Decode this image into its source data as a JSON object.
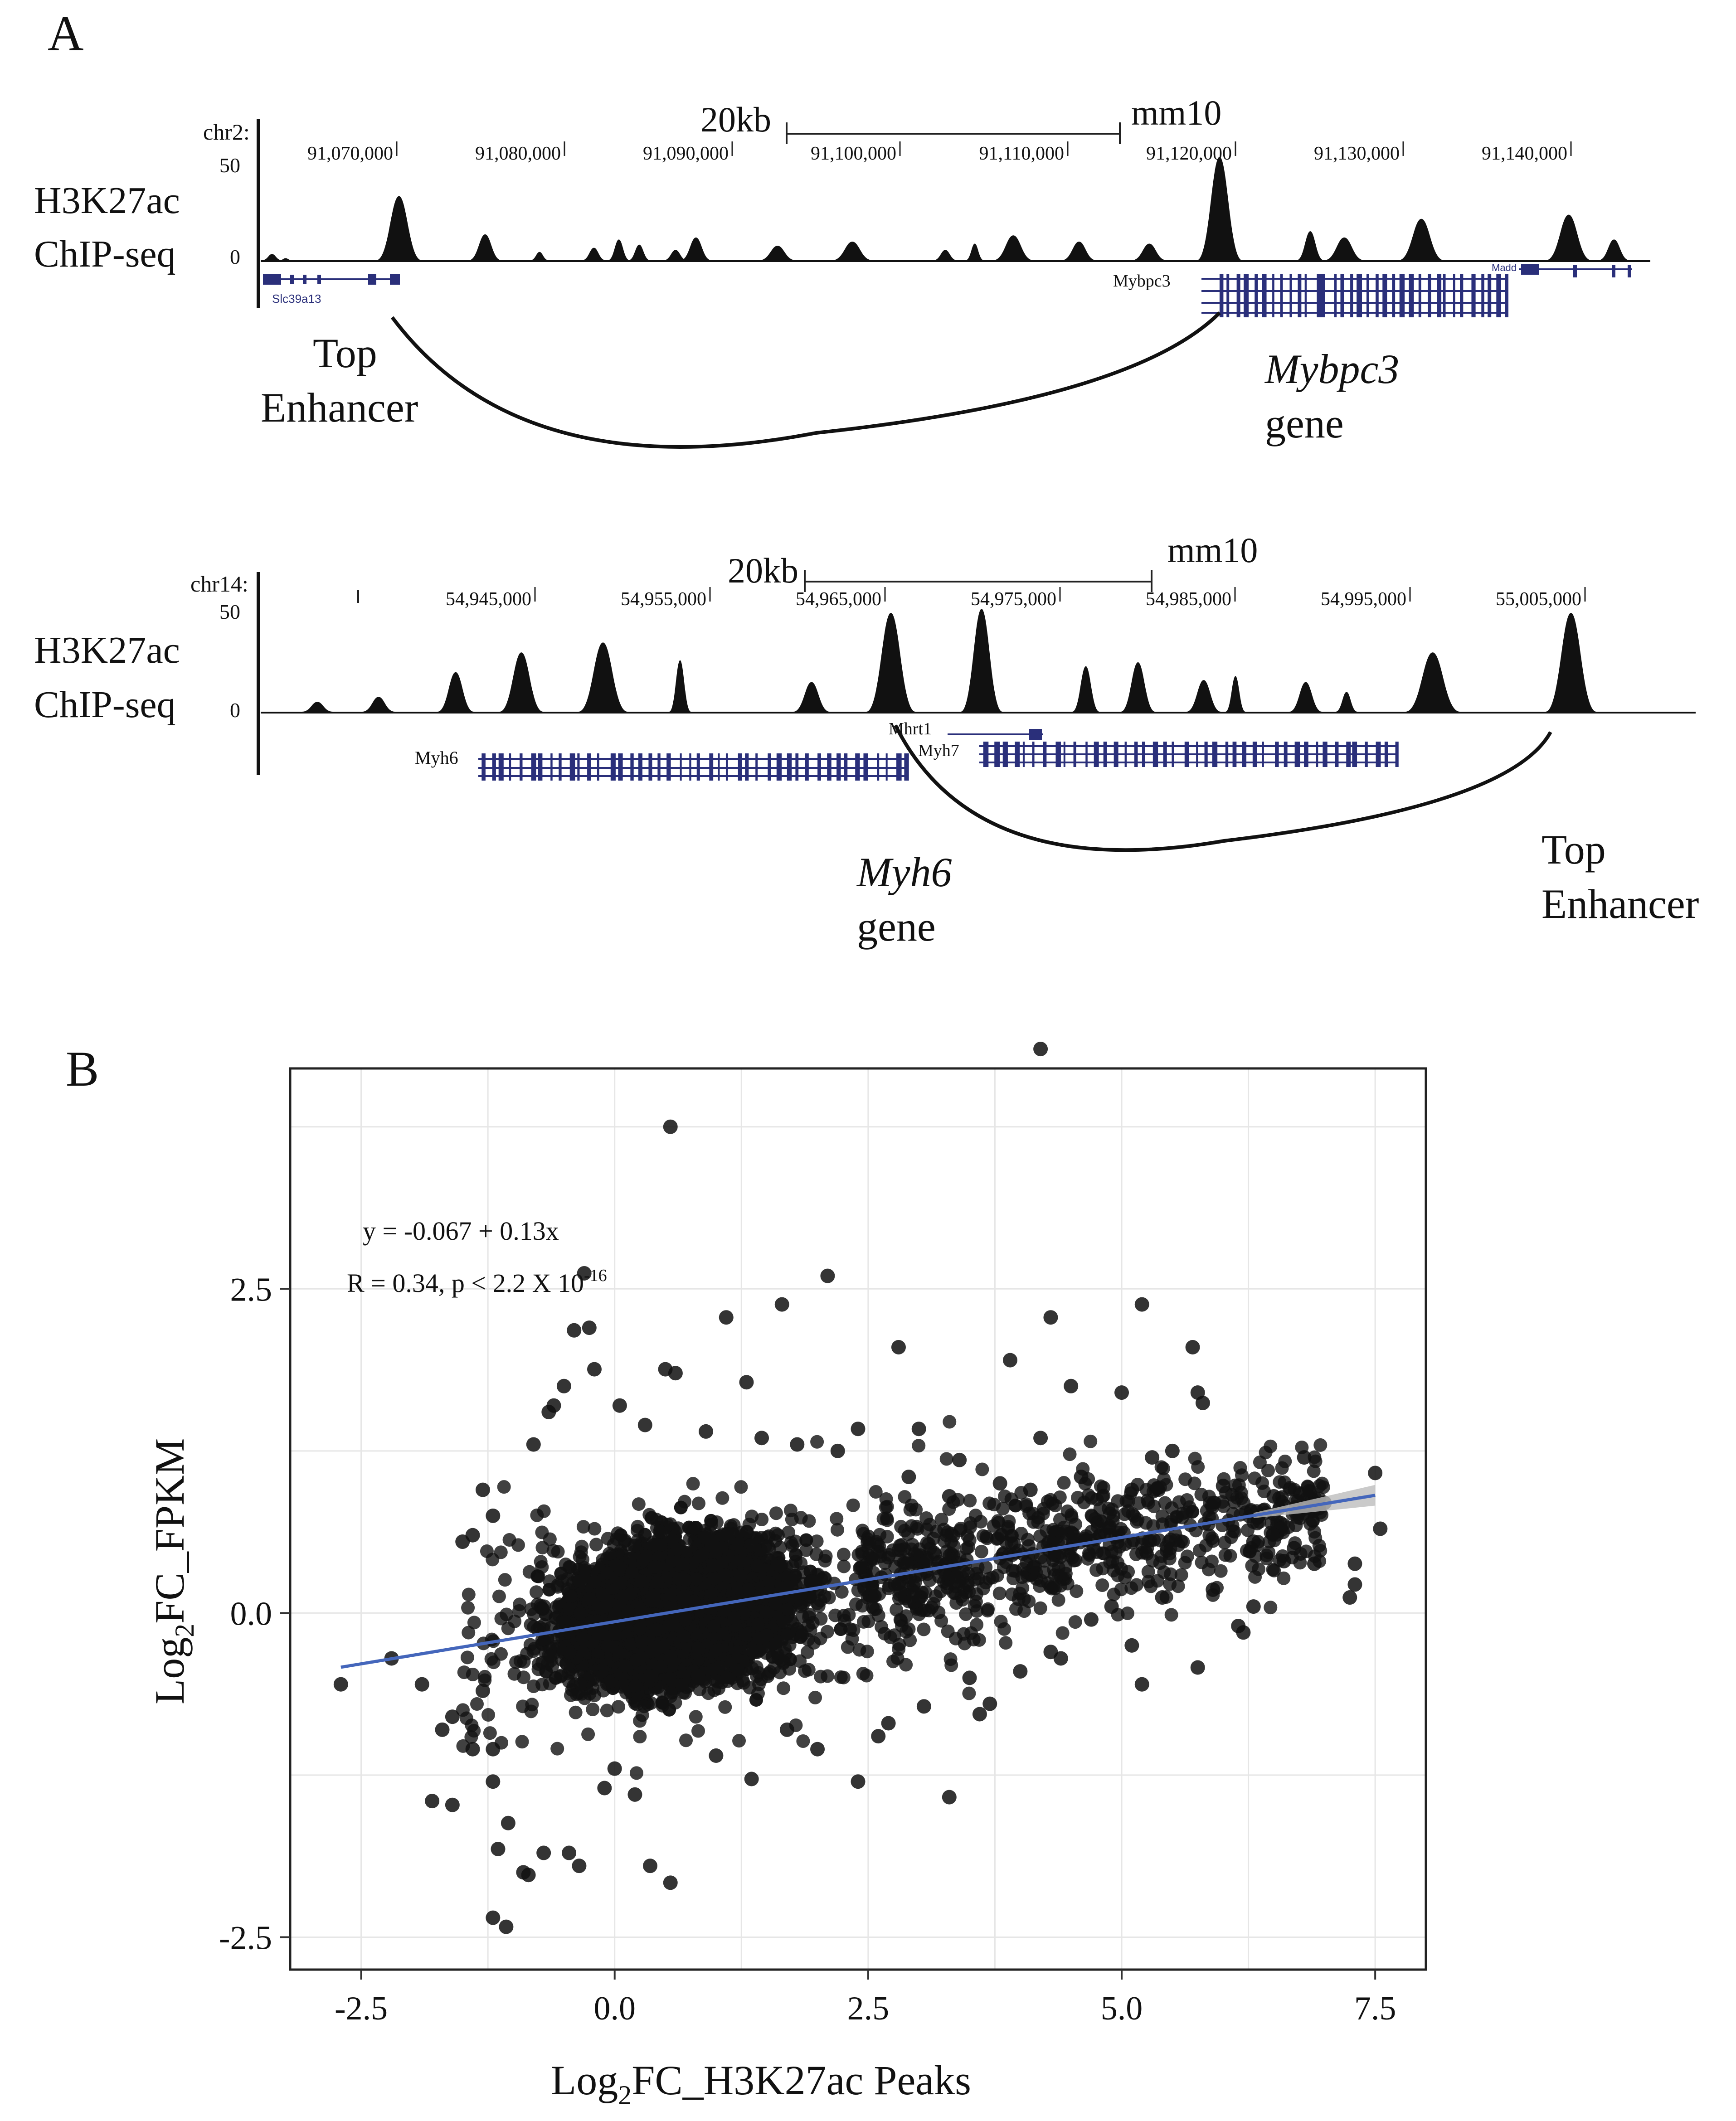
{
  "panel_a": {
    "label": "A",
    "top_track": {
      "chrom": "chr2:",
      "scale_text": "20kb",
      "assembly": "mm10",
      "ymax": "50",
      "ymin": "0",
      "track_label_1": "H3K27ac",
      "track_label_2": "ChIP-seq",
      "positions": [
        "91,070,000",
        "91,080,000",
        "91,090,000",
        "91,100,000",
        "91,110,000",
        "91,120,000",
        "91,130,000",
        "91,140,000"
      ],
      "genes": [
        "Slc39a13",
        "Mybpc3",
        "Madd"
      ],
      "enhancer_label_1": "Top",
      "enhancer_label_2": "Enhancer",
      "gene_label_1": "Mybpc3",
      "gene_label_2": "gene",
      "peak_heights": [
        0.06,
        0.02,
        0.62,
        0.25,
        0.08,
        0.12,
        0.2,
        0.15,
        0.1,
        0.22,
        0.14,
        0.18,
        0.1,
        0.16,
        0.24,
        0.18,
        0.16,
        1.0,
        0.28,
        0.22,
        0.4,
        0.44,
        0.2
      ]
    },
    "bottom_track": {
      "chrom": "chr14:",
      "scale_text": "20kb",
      "assembly": "mm10",
      "ymax": "50",
      "ymin": "0",
      "track_label_1": "H3K27ac",
      "track_label_2": "ChIP-seq",
      "positions": [
        "54,945,000",
        "54,955,000",
        "54,965,000",
        "54,975,000",
        "54,985,000",
        "54,995,000",
        "55,005,000"
      ],
      "genes": [
        "Myh6",
        "Mhrt1",
        "Myh7"
      ],
      "gene_label_1": "Myh6",
      "gene_label_2": "gene",
      "enhancer_label_1": "Top",
      "enhancer_label_2": "Enhancer",
      "peak_heights": [
        0.1,
        0.15,
        0.4,
        0.6,
        0.7,
        0.52,
        1.0,
        1.04,
        0.3,
        0.5,
        0.46,
        0.32,
        0.36,
        0.3,
        0.2,
        0.6,
        1.0
      ]
    }
  },
  "panel_b": {
    "label": "B",
    "equation": "y = -0.067 + 0.13x",
    "stats_prefix": "R = 0.34, p < 2.2 X 10",
    "stats_exp": "-16",
    "xlabel_pre": "Log",
    "xlabel_sub": "2",
    "xlabel_post": "FC_H3K27ac Peaks",
    "ylabel_pre": "Log",
    "ylabel_sub": "2",
    "ylabel_post": "FC_FPKM",
    "colors": {
      "points": "#111111",
      "fit": "#4466bb",
      "grid": "#e6e6e6"
    }
  },
  "chart_data": {
    "type": "scatter",
    "xlim": [
      -3.2,
      8.0
    ],
    "ylim": [
      -2.75,
      4.2
    ],
    "x_ticks": [
      -2.5,
      0.0,
      2.5,
      5.0,
      7.5
    ],
    "x_tick_labels": [
      "-2.5",
      "0.0",
      "2.5",
      "5.0",
      "7.5"
    ],
    "y_ticks": [
      -2.5,
      0.0,
      2.5
    ],
    "y_tick_labels": [
      "-2.5",
      "0.0",
      "2.5"
    ],
    "grid": true,
    "fit": {
      "intercept": -0.067,
      "slope": 0.13,
      "x_range": [
        -2.7,
        7.5
      ]
    },
    "points": [
      [
        4.2,
        4.35
      ],
      [
        0.55,
        3.75
      ],
      [
        -0.3,
        2.62
      ],
      [
        2.1,
        2.6
      ],
      [
        1.65,
        2.38
      ],
      [
        5.2,
        2.38
      ],
      [
        4.3,
        2.28
      ],
      [
        1.1,
        2.28
      ],
      [
        -0.4,
        2.18
      ],
      [
        -0.25,
        2.2
      ],
      [
        2.8,
        2.05
      ],
      [
        5.7,
        2.05
      ],
      [
        3.9,
        1.95
      ],
      [
        -0.2,
        1.88
      ],
      [
        0.5,
        1.88
      ],
      [
        0.6,
        1.85
      ],
      [
        1.3,
        1.78
      ],
      [
        -0.5,
        1.75
      ],
      [
        4.5,
        1.75
      ],
      [
        5.0,
        1.7
      ],
      [
        5.75,
        1.7
      ],
      [
        5.8,
        1.62
      ],
      [
        -0.6,
        1.6
      ],
      [
        0.05,
        1.6
      ],
      [
        -0.65,
        1.55
      ],
      [
        -0.8,
        1.3
      ],
      [
        2.4,
        1.42
      ],
      [
        3.0,
        1.42
      ],
      [
        4.2,
        1.35
      ],
      [
        5.5,
        1.25
      ],
      [
        5.3,
        1.2
      ],
      [
        6.8,
        1.2
      ],
      [
        7.5,
        1.08
      ],
      [
        6.0,
        0.98
      ],
      [
        6.5,
        0.9
      ],
      [
        7.0,
        0.85
      ],
      [
        -1.3,
        0.95
      ],
      [
        -1.2,
        0.75
      ],
      [
        -1.4,
        0.6
      ],
      [
        -1.5,
        0.55
      ],
      [
        7.55,
        0.65
      ],
      [
        6.3,
        0.55
      ],
      [
        6.7,
        0.5
      ],
      [
        6.6,
        0.4
      ],
      [
        7.3,
        0.38
      ],
      [
        6.9,
        0.38
      ],
      [
        7.3,
        0.22
      ],
      [
        7.25,
        0.12
      ],
      [
        6.3,
        0.05
      ],
      [
        6.15,
        -0.1
      ],
      [
        6.2,
        -0.15
      ],
      [
        5.1,
        -0.25
      ],
      [
        4.3,
        -0.3
      ],
      [
        4.4,
        -0.35
      ],
      [
        5.2,
        -0.55
      ],
      [
        5.75,
        -0.42
      ],
      [
        4.0,
        -0.45
      ],
      [
        3.5,
        -0.5
      ],
      [
        3.7,
        -0.7
      ],
      [
        3.6,
        -0.78
      ],
      [
        -2.7,
        -0.55
      ],
      [
        -2.2,
        -0.35
      ],
      [
        -1.9,
        -0.55
      ],
      [
        -1.6,
        -0.8
      ],
      [
        -1.7,
        -0.9
      ],
      [
        -1.3,
        -0.6
      ],
      [
        -1.2,
        -1.05
      ],
      [
        -1.2,
        -1.3
      ],
      [
        -1.4,
        -1.05
      ],
      [
        -1.8,
        -1.45
      ],
      [
        -1.6,
        -1.48
      ],
      [
        -1.05,
        -1.62
      ],
      [
        -1.15,
        -1.82
      ],
      [
        -0.7,
        -1.85
      ],
      [
        -0.9,
        -2.0
      ],
      [
        -0.85,
        -2.02
      ],
      [
        -0.35,
        -1.95
      ],
      [
        -0.45,
        -1.85
      ],
      [
        -1.2,
        -2.35
      ],
      [
        -1.07,
        -2.42
      ],
      [
        0.35,
        -1.95
      ],
      [
        0.55,
        -2.08
      ],
      [
        3.3,
        -1.42
      ],
      [
        2.4,
        -1.3
      ],
      [
        1.35,
        -1.28
      ],
      [
        2.0,
        -1.05
      ],
      [
        2.6,
        -0.95
      ],
      [
        1.0,
        -1.1
      ],
      [
        0.0,
        -1.2
      ],
      [
        2.7,
        -0.85
      ],
      [
        -0.1,
        -1.35
      ],
      [
        0.2,
        -1.4
      ],
      [
        1.7,
        -0.9
      ],
      [
        3.05,
        -0.72
      ],
      [
        4.7,
        -0.05
      ],
      [
        4.9,
        0.05
      ],
      [
        5.4,
        0.12
      ],
      [
        5.9,
        0.18
      ],
      [
        3.3,
        0.9
      ],
      [
        3.8,
        1.0
      ],
      [
        4.1,
        0.95
      ],
      [
        4.6,
        1.05
      ],
      [
        5.1,
        0.95
      ],
      [
        2.9,
        1.05
      ],
      [
        3.4,
        1.18
      ],
      [
        2.2,
        1.25
      ],
      [
        1.8,
        1.3
      ],
      [
        0.3,
        1.45
      ],
      [
        0.9,
        1.4
      ],
      [
        1.45,
        1.35
      ]
    ]
  }
}
